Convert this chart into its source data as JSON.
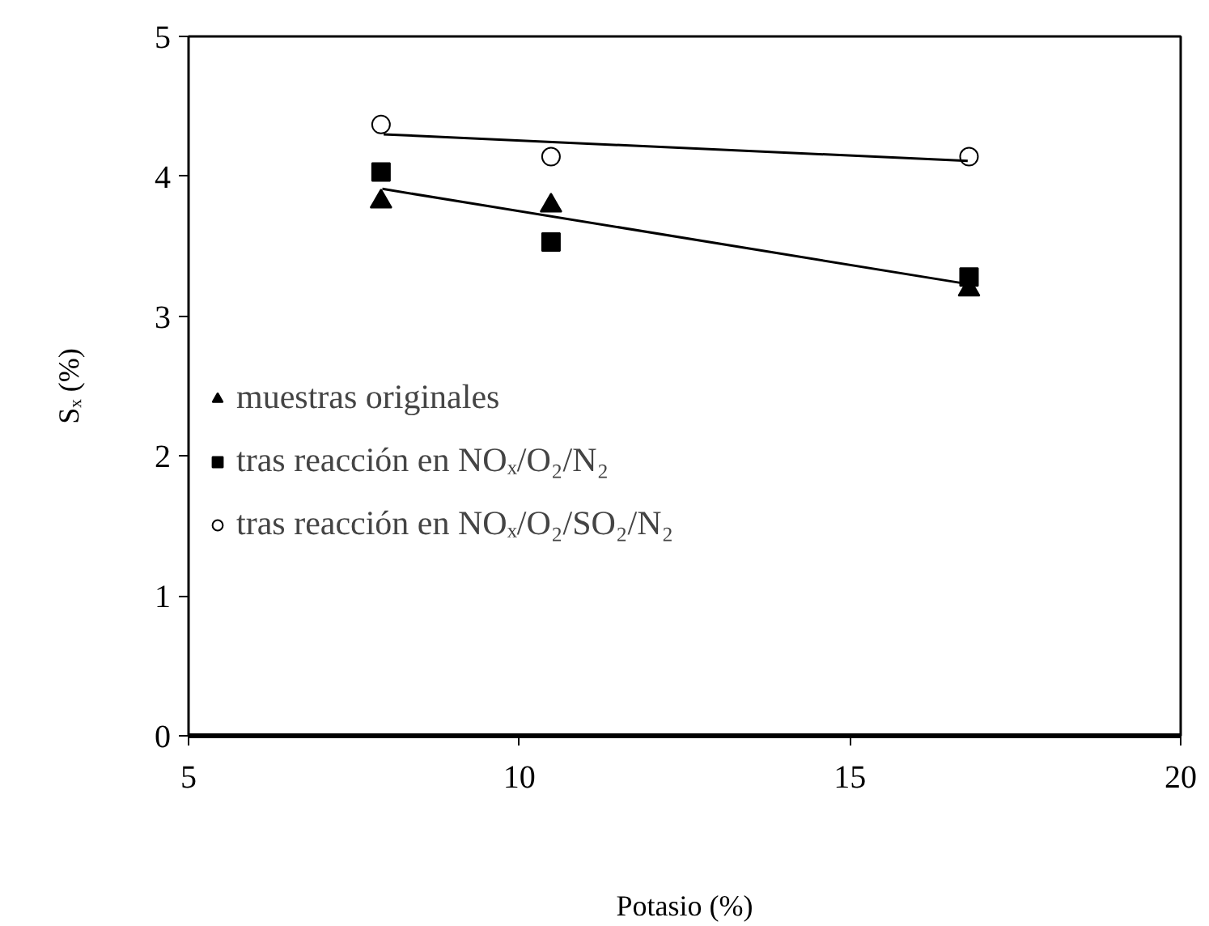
{
  "chart_data": {
    "type": "scatter",
    "xlabel": "Potasio (%)",
    "ylabel": "Sₓ (%)",
    "xlim": [
      5,
      20
    ],
    "xticks": [
      5,
      10,
      15,
      20
    ],
    "ylim": [
      0,
      5
    ],
    "yticks": [
      0,
      1,
      2,
      3,
      4,
      5
    ],
    "grid": false,
    "legend": "left",
    "series": [
      {
        "name": "muestras originales",
        "marker": "triangle",
        "color": "#000000",
        "x": [
          7.91,
          10.48,
          16.8
        ],
        "values": [
          3.82,
          3.79,
          3.19
        ]
      },
      {
        "name": "tras reacción en NOₓ/O₂/N₂",
        "marker": "square",
        "color": "#000000",
        "x": [
          7.91,
          10.48,
          16.8
        ],
        "values": [
          4.03,
          3.53,
          3.28
        ]
      },
      {
        "name": "tras reacción en NOₓ/O₂/SO₂/N₂",
        "marker": "circle",
        "color": "#000000",
        "x": [
          7.91,
          10.48,
          16.8
        ],
        "values": [
          4.37,
          4.14,
          4.14
        ]
      },
      {
        "type": "line",
        "color": "#000000",
        "x": [
          7.93,
          16.78
        ],
        "values": [
          3.91,
          3.23
        ]
      },
      {
        "type": "line",
        "color": "#000000",
        "x": [
          7.95,
          16.78
        ],
        "values": [
          4.3,
          4.11
        ]
      }
    ]
  }
}
